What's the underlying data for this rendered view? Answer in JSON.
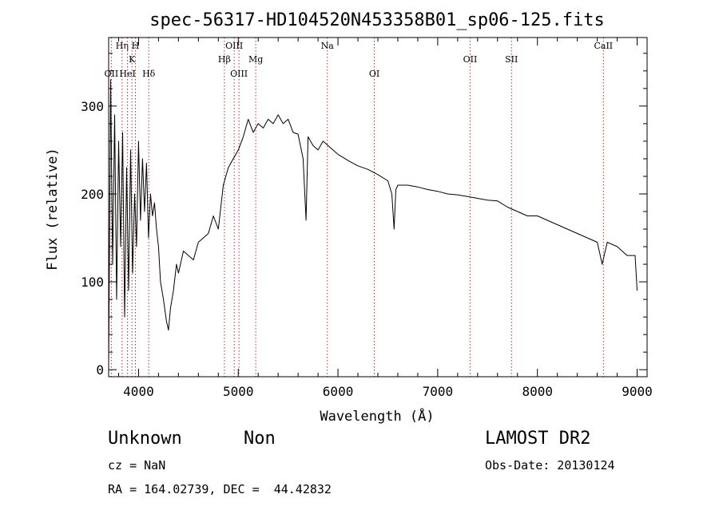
{
  "chart_data": {
    "type": "line",
    "title": "spec-56317-HD104520N453358B01_sp06-125.fits",
    "xlabel": "Wavelength (Å)",
    "ylabel": "Flux (relative)",
    "xlim": [
      3700,
      9100
    ],
    "ylim": [
      -8,
      378
    ],
    "xticks": [
      4000,
      5000,
      6000,
      7000,
      8000,
      9000
    ],
    "yticks": [
      0,
      100,
      200,
      300
    ],
    "grid": false,
    "series": [
      {
        "color": "#000000",
        "x": [
          3700,
          3720,
          3740,
          3760,
          3780,
          3800,
          3820,
          3840,
          3860,
          3880,
          3900,
          3920,
          3940,
          3960,
          3980,
          4000,
          4020,
          4040,
          4060,
          4080,
          4100,
          4120,
          4140,
          4160,
          4180,
          4200,
          4220,
          4250,
          4280,
          4300,
          4320,
          4350,
          4380,
          4400,
          4450,
          4500,
          4550,
          4600,
          4650,
          4700,
          4750,
          4800,
          4850,
          4900,
          4950,
          5000,
          5050,
          5100,
          5150,
          5200,
          5250,
          5300,
          5350,
          5400,
          5450,
          5500,
          5550,
          5600,
          5650,
          5680,
          5700,
          5750,
          5800,
          5850,
          5900,
          5950,
          6000,
          6100,
          6200,
          6300,
          6400,
          6500,
          6540,
          6563,
          6580,
          6600,
          6700,
          6800,
          6900,
          7000,
          7100,
          7200,
          7300,
          7400,
          7500,
          7600,
          7700,
          7800,
          7900,
          8000,
          8100,
          8200,
          8300,
          8400,
          8500,
          8600,
          8650,
          8700,
          8800,
          8900,
          8980,
          9000
        ],
        "y": [
          5,
          330,
          120,
          290,
          80,
          260,
          140,
          270,
          60,
          230,
          90,
          250,
          110,
          200,
          140,
          260,
          170,
          240,
          180,
          235,
          150,
          200,
          175,
          190,
          160,
          140,
          100,
          80,
          55,
          45,
          70,
          90,
          120,
          110,
          135,
          130,
          125,
          145,
          150,
          155,
          175,
          160,
          210,
          230,
          240,
          250,
          265,
          285,
          270,
          280,
          275,
          285,
          280,
          290,
          280,
          285,
          270,
          268,
          240,
          170,
          265,
          255,
          250,
          260,
          255,
          250,
          245,
          238,
          232,
          228,
          222,
          215,
          200,
          160,
          205,
          210,
          210,
          208,
          205,
          203,
          200,
          199,
          197,
          195,
          193,
          192,
          185,
          180,
          175,
          175,
          170,
          165,
          160,
          155,
          150,
          145,
          120,
          145,
          140,
          130,
          130,
          90
        ]
      }
    ],
    "line_markers": [
      {
        "label": "OII",
        "x": 3727,
        "row": 3
      },
      {
        "label": "Hη",
        "x": 3835,
        "row": 1
      },
      {
        "label": "HeI",
        "x": 3889,
        "row": 3
      },
      {
        "label": "K",
        "x": 3934,
        "row": 2
      },
      {
        "label": "H",
        "x": 3969,
        "row": 1
      },
      {
        "label": "Hδ",
        "x": 4102,
        "row": 3
      },
      {
        "label": "Hβ",
        "x": 4861,
        "row": 2
      },
      {
        "label": "OIII",
        "x": 4959,
        "row": 1
      },
      {
        "label": "OIII",
        "x": 5007,
        "row": 3
      },
      {
        "label": "Mg",
        "x": 5175,
        "row": 2
      },
      {
        "label": "Na",
        "x": 5893,
        "row": 1
      },
      {
        "label": "OI",
        "x": 6364,
        "row": 3
      },
      {
        "label": "OII",
        "x": 7325,
        "row": 2
      },
      {
        "label": "SII",
        "x": 7740,
        "row": 2
      },
      {
        "label": "CaII",
        "x": 8662,
        "row": 1
      }
    ]
  },
  "info": {
    "object_class": "Unknown",
    "object_subclass": "Non",
    "survey": "LAMOST DR2",
    "cz": "cz = NaN",
    "obs_date": "Obs-Date: 20130124",
    "coords": "RA = 164.02739, DEC =  44.42832"
  }
}
